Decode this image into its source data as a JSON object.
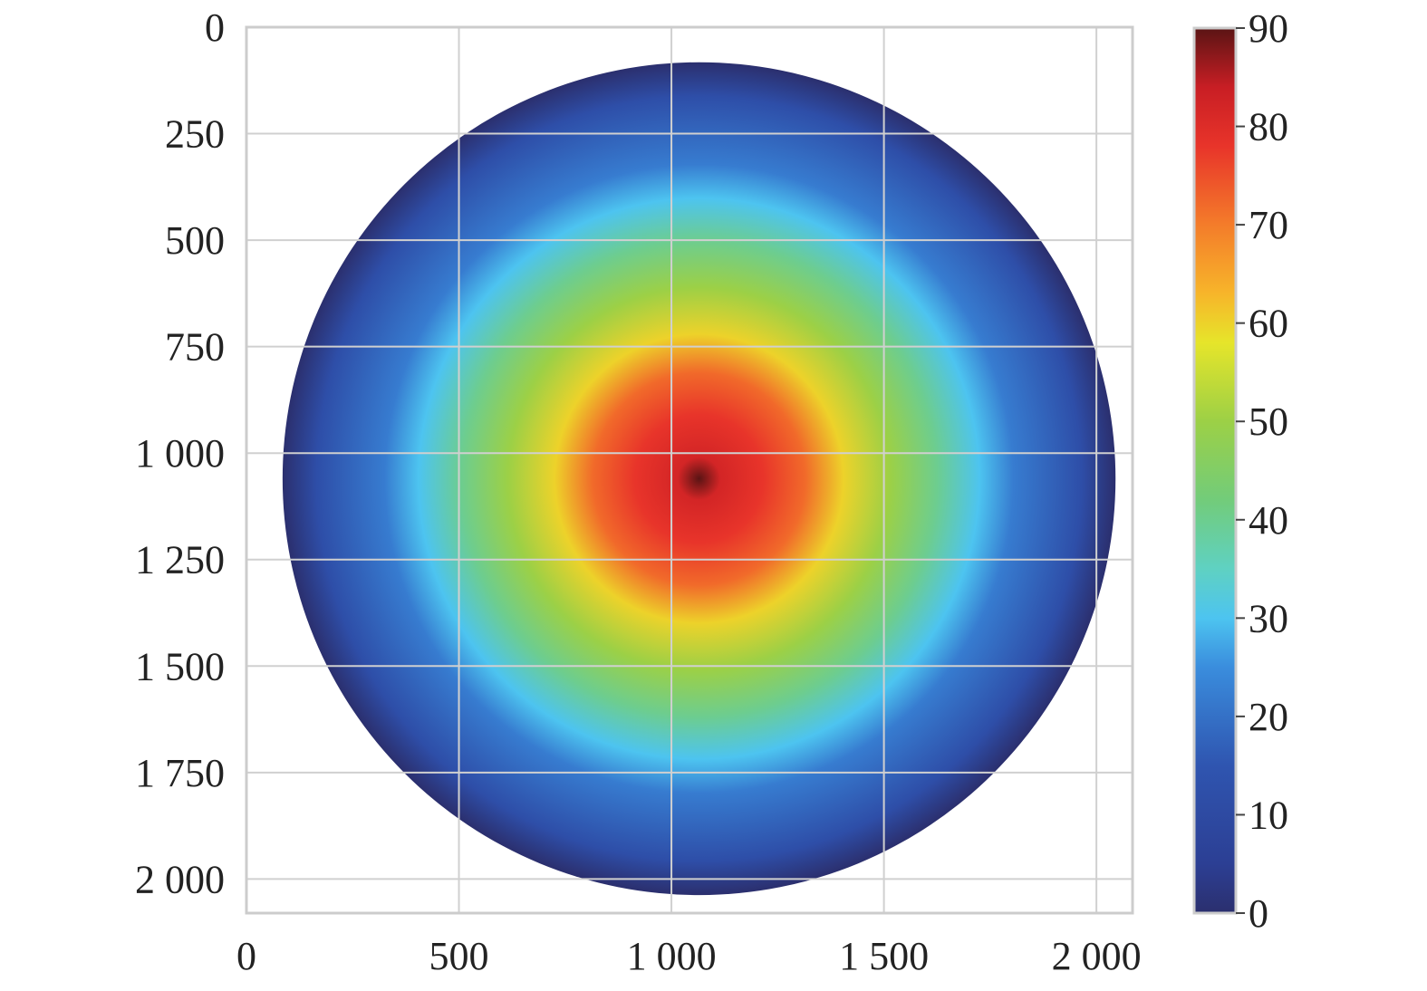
{
  "chart_data": {
    "type": "heatmap",
    "title": "",
    "xlabel": "",
    "ylabel": "",
    "xlim": [
      0,
      2085
    ],
    "ylim": [
      2080,
      0
    ],
    "x_ticks": [
      0,
      500,
      1000,
      1500,
      2000
    ],
    "x_tick_labels": [
      "0",
      "500",
      "1 000",
      "1 500",
      "2 000"
    ],
    "y_ticks": [
      0,
      250,
      500,
      750,
      1000,
      1250,
      1500,
      1750,
      2000
    ],
    "y_tick_labels": [
      "0",
      "250",
      "500",
      "750",
      "1 000",
      "1 250",
      "1 500",
      "1 750",
      "2 000"
    ],
    "grid": true,
    "disk": {
      "center_x": 1065,
      "center_y": 1060,
      "radius": 980
    },
    "peak_value": 90,
    "edge_value": 0,
    "radial_profile": [
      {
        "r": 0,
        "value": 90
      },
      {
        "r": 50,
        "value": 82
      },
      {
        "r": 150,
        "value": 78
      },
      {
        "r": 250,
        "value": 72
      },
      {
        "r": 340,
        "value": 60
      },
      {
        "r": 450,
        "value": 50
      },
      {
        "r": 560,
        "value": 40
      },
      {
        "r": 660,
        "value": 30
      },
      {
        "r": 740,
        "value": 22
      },
      {
        "r": 900,
        "value": 12
      },
      {
        "r": 980,
        "value": 0
      }
    ],
    "colorbar": {
      "min": 0,
      "max": 90,
      "ticks": [
        0,
        10,
        20,
        30,
        40,
        50,
        60,
        70,
        80,
        90
      ],
      "tick_labels": [
        "0",
        "10",
        "20",
        "30",
        "40",
        "50",
        "60",
        "70",
        "80",
        "90"
      ],
      "stops": [
        {
          "value": 0,
          "color": "#2b2f6e"
        },
        {
          "value": 5,
          "color": "#2c3f94"
        },
        {
          "value": 15,
          "color": "#2f55b0"
        },
        {
          "value": 25,
          "color": "#3a8ddd"
        },
        {
          "value": 30,
          "color": "#4dc4f0"
        },
        {
          "value": 35,
          "color": "#5fd1c2"
        },
        {
          "value": 42,
          "color": "#72cc7a"
        },
        {
          "value": 50,
          "color": "#9cd046"
        },
        {
          "value": 58,
          "color": "#e6e52a"
        },
        {
          "value": 63,
          "color": "#f7b52a"
        },
        {
          "value": 70,
          "color": "#f47c2a"
        },
        {
          "value": 78,
          "color": "#e8342a"
        },
        {
          "value": 84,
          "color": "#c81e24"
        },
        {
          "value": 90,
          "color": "#5a1414"
        }
      ]
    },
    "colors": {
      "grid": "#d0d0d0",
      "frame": "#cccccc",
      "text": "#222222"
    }
  }
}
